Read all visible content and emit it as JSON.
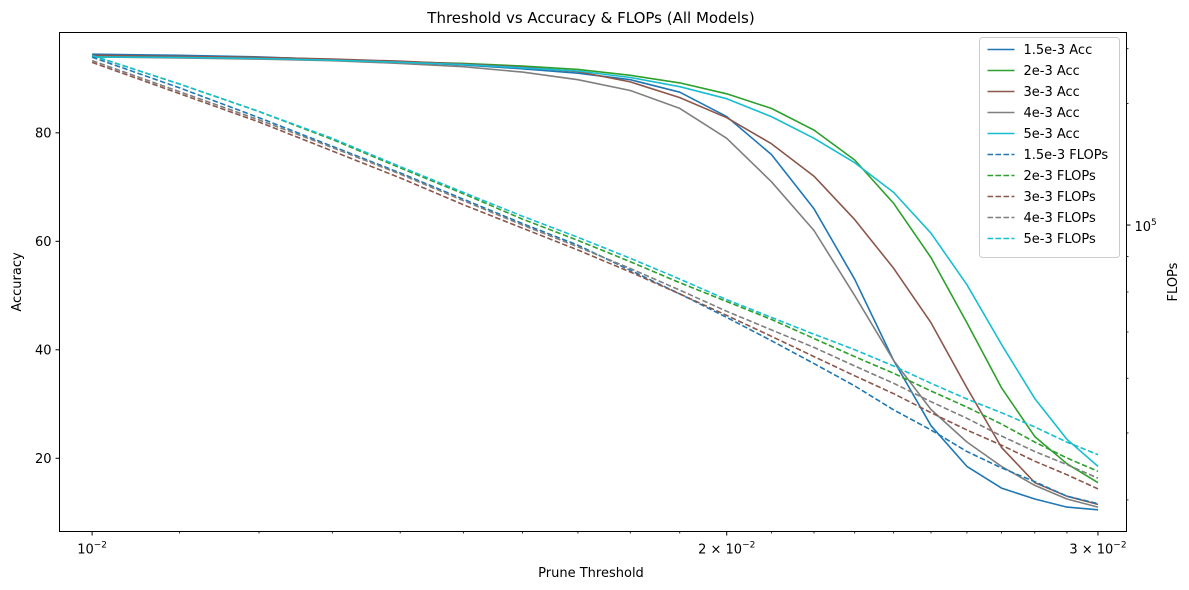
{
  "chart_data": {
    "type": "line",
    "title": "Threshold vs Accuracy & FLOPs (All Models)",
    "xlabel": "Prune Threshold",
    "ylabel": "Accuracy",
    "y2label": "FLOPs",
    "xscale": "log",
    "xlim": [
      0.00965,
      0.03095
    ],
    "ylim": [
      6.5,
      98.5
    ],
    "y2scale": "log",
    "y2lim": [
      36000,
      190000
    ],
    "x_ticks": [
      {
        "value": 0.01,
        "label": "10",
        "exp": "−2"
      },
      {
        "value": 0.02,
        "label": "2 × 10",
        "exp": "−2"
      },
      {
        "value": 0.03,
        "label": "3 × 10",
        "exp": "−2"
      }
    ],
    "y_ticks": [
      20,
      40,
      60,
      80
    ],
    "y2_major_ticks": [
      {
        "value": 100000,
        "label": "10",
        "exp": "5"
      }
    ],
    "legend_position": "top-right",
    "x": [
      0.01,
      0.011,
      0.012,
      0.013,
      0.014,
      0.015,
      0.016,
      0.017,
      0.018,
      0.019,
      0.02,
      0.021,
      0.022,
      0.023,
      0.024,
      0.025,
      0.026,
      0.027,
      0.028,
      0.029,
      0.03
    ],
    "series": [
      {
        "name": "1.5e-3 Acc",
        "axis": "left",
        "style": "solid",
        "color": "#1f77b4",
        "values": [
          94.5,
          94.3,
          94.0,
          93.5,
          93.0,
          92.5,
          91.8,
          91.0,
          89.8,
          87.5,
          83.0,
          76.0,
          66.0,
          53.0,
          38.0,
          26.0,
          18.5,
          14.5,
          12.5,
          11.0,
          10.5
        ]
      },
      {
        "name": "2e-3 Acc",
        "axis": "left",
        "style": "solid",
        "color": "#2ca02c",
        "values": [
          94.2,
          94.0,
          93.8,
          93.5,
          93.1,
          92.8,
          92.3,
          91.7,
          90.6,
          89.2,
          87.2,
          84.5,
          80.5,
          75.0,
          67.0,
          57.0,
          45.0,
          33.0,
          24.0,
          19.0,
          15.5
        ]
      },
      {
        "name": "3e-3 Acc",
        "axis": "left",
        "style": "solid",
        "color": "#8c564b",
        "values": [
          94.3,
          94.1,
          93.9,
          93.6,
          93.2,
          92.7,
          92.1,
          91.3,
          89.4,
          86.5,
          82.8,
          78.0,
          72.0,
          64.0,
          55.0,
          45.0,
          33.0,
          22.0,
          15.5,
          13.0,
          11.5
        ]
      },
      {
        "name": "4e-3 Acc",
        "axis": "left",
        "style": "solid",
        "color": "#7f7f7f",
        "values": [
          94.0,
          93.8,
          93.6,
          93.3,
          92.8,
          92.2,
          91.2,
          89.8,
          87.8,
          84.5,
          79.0,
          71.0,
          62.0,
          50.0,
          38.0,
          29.0,
          23.0,
          18.5,
          15.0,
          12.5,
          11.0
        ]
      },
      {
        "name": "5e-3 Acc",
        "axis": "left",
        "style": "solid",
        "color": "#17becf",
        "values": [
          94.0,
          93.9,
          93.7,
          93.4,
          93.0,
          92.6,
          92.0,
          91.4,
          90.2,
          88.5,
          86.3,
          83.0,
          79.0,
          74.5,
          69.0,
          61.5,
          52.0,
          41.0,
          31.0,
          23.5,
          18.5
        ]
      },
      {
        "name": "1.5e-3 FLOPs",
        "axis": "right",
        "style": "dashed",
        "color": "#1f77b4",
        "values": [
          175000,
          158000,
          143000,
          130000,
          119000,
          109000,
          100500,
          93500,
          86000,
          79500,
          73500,
          68000,
          63000,
          58500,
          54000,
          50500,
          47000,
          44500,
          42500,
          40500,
          39500
        ]
      },
      {
        "name": "2e-3 FLOPs",
        "axis": "right",
        "style": "dashed",
        "color": "#2ca02c",
        "values": [
          176000,
          160000,
          146000,
          133000,
          121000,
          111000,
          102000,
          95000,
          88500,
          82500,
          77500,
          73000,
          68500,
          64500,
          61000,
          57500,
          54500,
          51500,
          48500,
          46000,
          44000
        ]
      },
      {
        "name": "3e-3 FLOPs",
        "axis": "right",
        "style": "dashed",
        "color": "#8c564b",
        "values": [
          172000,
          155000,
          141000,
          128000,
          117000,
          107000,
          99000,
          92000,
          85500,
          79500,
          74000,
          69000,
          64500,
          60500,
          57000,
          53500,
          50500,
          48000,
          45500,
          43500,
          41500
        ]
      },
      {
        "name": "4e-3 FLOPs",
        "axis": "right",
        "style": "dashed",
        "color": "#7f7f7f",
        "values": [
          173000,
          156000,
          142000,
          129500,
          118500,
          108500,
          100000,
          93000,
          86500,
          80500,
          75000,
          70500,
          66500,
          62500,
          59000,
          55500,
          52500,
          49500,
          47000,
          45000,
          43000
        ]
      },
      {
        "name": "5e-3 FLOPs",
        "axis": "right",
        "style": "dashed",
        "color": "#17becf",
        "values": [
          176000,
          160000,
          146000,
          133500,
          121500,
          111500,
          103000,
          96000,
          89500,
          83500,
          78000,
          73500,
          69500,
          66000,
          62500,
          59000,
          56000,
          53500,
          51000,
          48500,
          46500
        ]
      }
    ]
  }
}
